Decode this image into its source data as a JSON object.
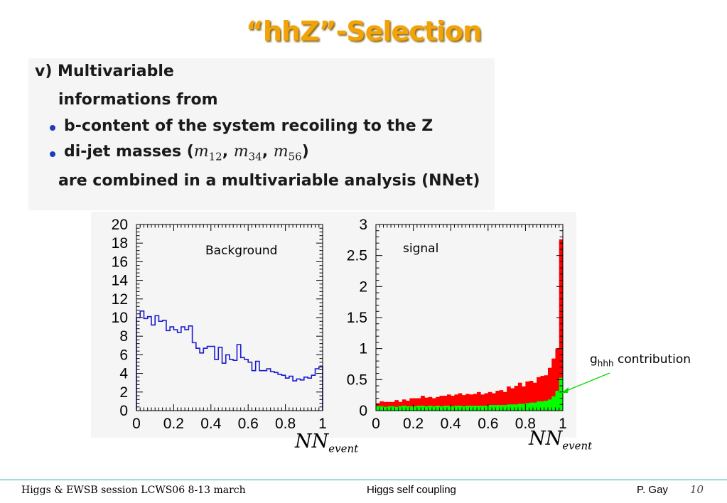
{
  "slide": {
    "title": "“hhZ”-Selection"
  },
  "text_box": {
    "line1": "v) Multivariable",
    "line2": "informations from",
    "bullet1": "b-content of the system recoiling to the Z",
    "bullet2_prefix": "di-jet masses (",
    "m1": "m",
    "m1_sub": "12",
    "sep1": ", ",
    "m2": "m",
    "m2_sub": "34",
    "sep2": ", ",
    "m3": "m",
    "m3_sub": "56",
    "bullet2_suffix": ")",
    "line5": "are combined in a multivariable analysis (NNet)"
  },
  "chart_data": [
    {
      "type": "histogram",
      "annotation": "Background",
      "xlabel_main": "NN",
      "xlabel_sub": "event",
      "xlim": [
        0,
        1
      ],
      "ylim": [
        0,
        20
      ],
      "xticks": [
        "0",
        "0.2",
        "0.4",
        "0.6",
        "0.8",
        "1"
      ],
      "yticks": [
        "0",
        "2",
        "4",
        "6",
        "8",
        "10",
        "12",
        "14",
        "16",
        "18",
        "20"
      ],
      "bin_width": 0.02,
      "series": [
        {
          "style": "step",
          "color": "#1a1ad0",
          "values": [
            10.0,
            10.7,
            9.9,
            10.1,
            9.2,
            10.2,
            9.6,
            9.7,
            8.6,
            9.0,
            8.7,
            8.4,
            9.0,
            8.7,
            9.1,
            7.3,
            6.7,
            6.2,
            6.7,
            6.9,
            6.9,
            5.5,
            6.8,
            5.1,
            6.0,
            5.5,
            5.4,
            7.1,
            5.7,
            5.5,
            5.2,
            4.3,
            5.3,
            4.3,
            4.3,
            4.5,
            4.2,
            4.1,
            3.9,
            3.8,
            3.5,
            3.7,
            3.2,
            3.4,
            3.3,
            3.6,
            3.5,
            3.8,
            4.5,
            4.7
          ]
        }
      ]
    },
    {
      "type": "histogram",
      "annotation": "signal",
      "xlabel_main": "NN",
      "xlabel_sub": "event",
      "xlim": [
        0,
        1
      ],
      "ylim": [
        0,
        3
      ],
      "xticks": [
        "0",
        "0.2",
        "0.4",
        "0.6",
        "0.8",
        "1"
      ],
      "yticks": [
        "0",
        "0.5",
        "1",
        "1.5",
        "2",
        "2.5",
        "3"
      ],
      "bin_width": 0.02,
      "series": [
        {
          "style": "filled",
          "color": "#ff0000",
          "values": [
            0.12,
            0.15,
            0.14,
            0.14,
            0.14,
            0.17,
            0.14,
            0.18,
            0.16,
            0.2,
            0.2,
            0.2,
            0.24,
            0.21,
            0.22,
            0.2,
            0.22,
            0.24,
            0.24,
            0.26,
            0.24,
            0.26,
            0.28,
            0.25,
            0.27,
            0.26,
            0.27,
            0.3,
            0.26,
            0.28,
            0.3,
            0.28,
            0.32,
            0.33,
            0.3,
            0.39,
            0.36,
            0.4,
            0.45,
            0.39,
            0.47,
            0.48,
            0.45,
            0.54,
            0.56,
            0.57,
            0.69,
            0.84,
            1.0,
            2.76
          ]
        },
        {
          "style": "filled",
          "color": "#00ff00",
          "values": [
            0.07,
            0.07,
            0.06,
            0.07,
            0.07,
            0.06,
            0.07,
            0.08,
            0.07,
            0.07,
            0.07,
            0.08,
            0.08,
            0.07,
            0.08,
            0.07,
            0.08,
            0.07,
            0.08,
            0.08,
            0.07,
            0.08,
            0.08,
            0.07,
            0.08,
            0.08,
            0.08,
            0.08,
            0.08,
            0.08,
            0.09,
            0.09,
            0.09,
            0.09,
            0.09,
            0.1,
            0.1,
            0.1,
            0.11,
            0.11,
            0.12,
            0.13,
            0.13,
            0.15,
            0.15,
            0.16,
            0.18,
            0.23,
            0.32,
            0.53
          ]
        }
      ],
      "callout": {
        "g": "g",
        "g_sub": "hhh",
        "text": " contribution",
        "arrow_color": "#00dd00"
      }
    }
  ],
  "footer": {
    "left": "Higgs & EWSB session LCWS06 8-13 march",
    "center": "Higgs self coupling",
    "author": "P.  Gay",
    "page": "10"
  }
}
